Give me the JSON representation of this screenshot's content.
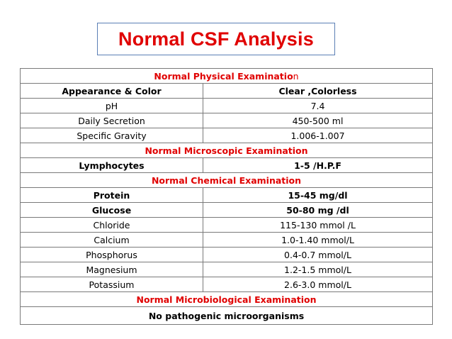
{
  "title": "Normal CSF Analysis",
  "sections": {
    "physical": {
      "heading_main": "Normal Physical Examinatio",
      "heading_tail": "n"
    },
    "microscopic": {
      "heading": "Normal Microscopic Examination"
    },
    "chemical": {
      "heading": "Normal Chemical Examination"
    },
    "microbiological": {
      "heading": "Normal Microbiological Examination",
      "result": "No pathogenic microorganisms"
    }
  },
  "physical_rows": [
    {
      "param": "Appearance & Color",
      "value": "Clear ,Colorless"
    },
    {
      "param": "pH",
      "value": "7.4"
    },
    {
      "param": "Daily Secretion",
      "value": "450-500 ml"
    },
    {
      "param": "Specific Gravity",
      "value": "1.006-1.007"
    }
  ],
  "microscopic_rows": [
    {
      "param": "Lymphocytes",
      "value": "1-5 /H.P.F"
    }
  ],
  "chemical_rows": [
    {
      "param": "Protein",
      "value": "15-45 mg/dl"
    },
    {
      "param": "Glucose",
      "value": "50-80  mg /dl"
    },
    {
      "param": "Chloride",
      "value": "115-130 mmol /L"
    },
    {
      "param": "Calcium",
      "value": "1.0-1.40 mmol/L"
    },
    {
      "param": "Phosphorus",
      "value": "0.4-0.7 mmol/L"
    },
    {
      "param": "Magnesium",
      "value": "1.2-1.5 mmol/L"
    },
    {
      "param": "Potassium",
      "value": "2.6-3.0 mmol/L"
    }
  ],
  "colors": {
    "title": "#e00000",
    "section_heading": "#e00000",
    "title_border": "#5b7fb5",
    "grid": "#7a7a7a"
  }
}
